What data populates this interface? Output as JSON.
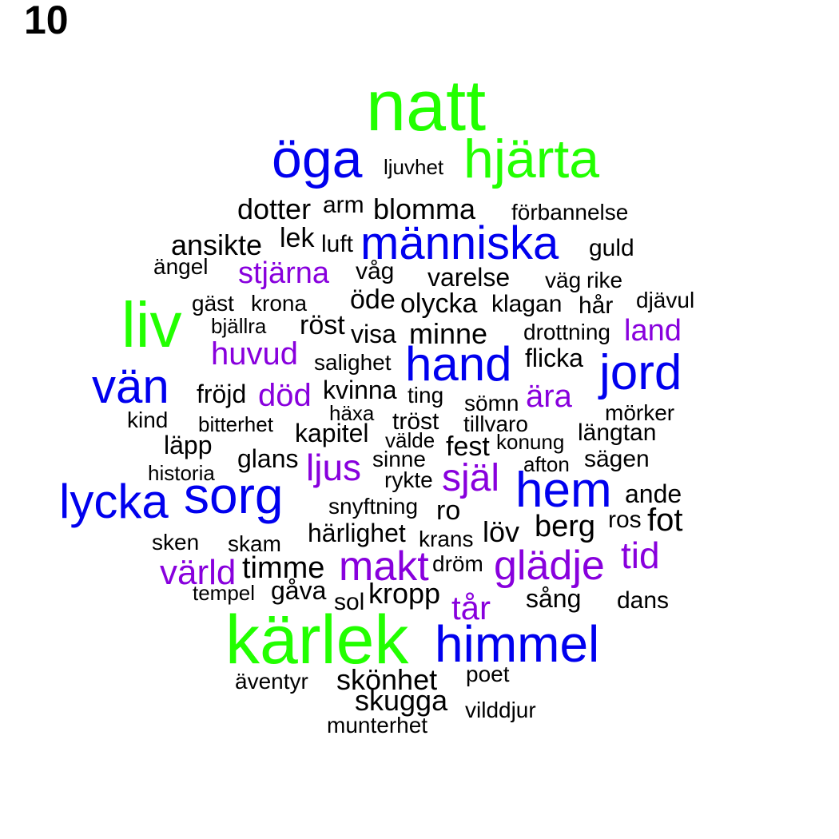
{
  "page_label": "10",
  "colors": {
    "green": "#22ff00",
    "blue": "#0000ee",
    "purple": "#8800dd",
    "black": "#000000"
  },
  "words": [
    {
      "text": "natt",
      "color": "green"
    },
    {
      "text": "öga",
      "color": "blue"
    },
    {
      "text": "ljuvhet",
      "color": "black"
    },
    {
      "text": "hjärta",
      "color": "green"
    },
    {
      "text": "dotter",
      "color": "black"
    },
    {
      "text": "arm",
      "color": "black"
    },
    {
      "text": "blomma",
      "color": "black"
    },
    {
      "text": "förbannelse",
      "color": "black"
    },
    {
      "text": "ansikte",
      "color": "black"
    },
    {
      "text": "lek",
      "color": "black"
    },
    {
      "text": "luft",
      "color": "black"
    },
    {
      "text": "människa",
      "color": "blue"
    },
    {
      "text": "guld",
      "color": "black"
    },
    {
      "text": "ängel",
      "color": "black"
    },
    {
      "text": "stjärna",
      "color": "purple"
    },
    {
      "text": "våg",
      "color": "black"
    },
    {
      "text": "varelse",
      "color": "black"
    },
    {
      "text": "väg",
      "color": "black"
    },
    {
      "text": "rike",
      "color": "black"
    },
    {
      "text": "liv",
      "color": "green"
    },
    {
      "text": "gäst",
      "color": "black"
    },
    {
      "text": "krona",
      "color": "black"
    },
    {
      "text": "öde",
      "color": "black"
    },
    {
      "text": "olycka",
      "color": "black"
    },
    {
      "text": "klagan",
      "color": "black"
    },
    {
      "text": "hår",
      "color": "black"
    },
    {
      "text": "djävul",
      "color": "black"
    },
    {
      "text": "bjällra",
      "color": "black"
    },
    {
      "text": "röst",
      "color": "black"
    },
    {
      "text": "visa",
      "color": "black"
    },
    {
      "text": "minne",
      "color": "black"
    },
    {
      "text": "drottning",
      "color": "black"
    },
    {
      "text": "land",
      "color": "purple"
    },
    {
      "text": "huvud",
      "color": "purple"
    },
    {
      "text": "salighet",
      "color": "black"
    },
    {
      "text": "hand",
      "color": "blue"
    },
    {
      "text": "flicka",
      "color": "black"
    },
    {
      "text": "jord",
      "color": "blue"
    },
    {
      "text": "vän",
      "color": "blue"
    },
    {
      "text": "fröjd",
      "color": "black"
    },
    {
      "text": "död",
      "color": "purple"
    },
    {
      "text": "kvinna",
      "color": "black"
    },
    {
      "text": "ting",
      "color": "black"
    },
    {
      "text": "sömn",
      "color": "black"
    },
    {
      "text": "ära",
      "color": "purple"
    },
    {
      "text": "kind",
      "color": "black"
    },
    {
      "text": "bitterhet",
      "color": "black"
    },
    {
      "text": "häxa",
      "color": "black"
    },
    {
      "text": "tröst",
      "color": "black"
    },
    {
      "text": "tillvaro",
      "color": "black"
    },
    {
      "text": "mörker",
      "color": "black"
    },
    {
      "text": "läpp",
      "color": "black"
    },
    {
      "text": "kapitel",
      "color": "black"
    },
    {
      "text": "välde",
      "color": "black"
    },
    {
      "text": "fest",
      "color": "black"
    },
    {
      "text": "konung",
      "color": "black"
    },
    {
      "text": "längtan",
      "color": "black"
    },
    {
      "text": "historia",
      "color": "black"
    },
    {
      "text": "glans",
      "color": "black"
    },
    {
      "text": "ljus",
      "color": "purple"
    },
    {
      "text": "sinne",
      "color": "black"
    },
    {
      "text": "afton",
      "color": "black"
    },
    {
      "text": "sägen",
      "color": "black"
    },
    {
      "text": "rykte",
      "color": "black"
    },
    {
      "text": "själ",
      "color": "purple"
    },
    {
      "text": "lycka",
      "color": "blue"
    },
    {
      "text": "sorg",
      "color": "blue"
    },
    {
      "text": "hem",
      "color": "blue"
    },
    {
      "text": "ande",
      "color": "black"
    },
    {
      "text": "snyftning",
      "color": "black"
    },
    {
      "text": "ro",
      "color": "black"
    },
    {
      "text": "ros",
      "color": "black"
    },
    {
      "text": "fot",
      "color": "black"
    },
    {
      "text": "berg",
      "color": "black"
    },
    {
      "text": "härlighet",
      "color": "black"
    },
    {
      "text": "löv",
      "color": "black"
    },
    {
      "text": "krans",
      "color": "black"
    },
    {
      "text": "sken",
      "color": "black"
    },
    {
      "text": "skam",
      "color": "black"
    },
    {
      "text": "tid",
      "color": "purple"
    },
    {
      "text": "makt",
      "color": "purple"
    },
    {
      "text": "glädje",
      "color": "purple"
    },
    {
      "text": "värld",
      "color": "purple"
    },
    {
      "text": "timme",
      "color": "black"
    },
    {
      "text": "dröm",
      "color": "black"
    },
    {
      "text": "tempel",
      "color": "black"
    },
    {
      "text": "gåva",
      "color": "black"
    },
    {
      "text": "kropp",
      "color": "black"
    },
    {
      "text": "sol",
      "color": "black"
    },
    {
      "text": "sång",
      "color": "black"
    },
    {
      "text": "tår",
      "color": "purple"
    },
    {
      "text": "dans",
      "color": "black"
    },
    {
      "text": "kärlek",
      "color": "green"
    },
    {
      "text": "himmel",
      "color": "blue"
    },
    {
      "text": "äventyr",
      "color": "black"
    },
    {
      "text": "skönhet",
      "color": "black"
    },
    {
      "text": "poet",
      "color": "black"
    },
    {
      "text": "skugga",
      "color": "black"
    },
    {
      "text": "vilddjur",
      "color": "black"
    },
    {
      "text": "munterhet",
      "color": "black"
    }
  ]
}
